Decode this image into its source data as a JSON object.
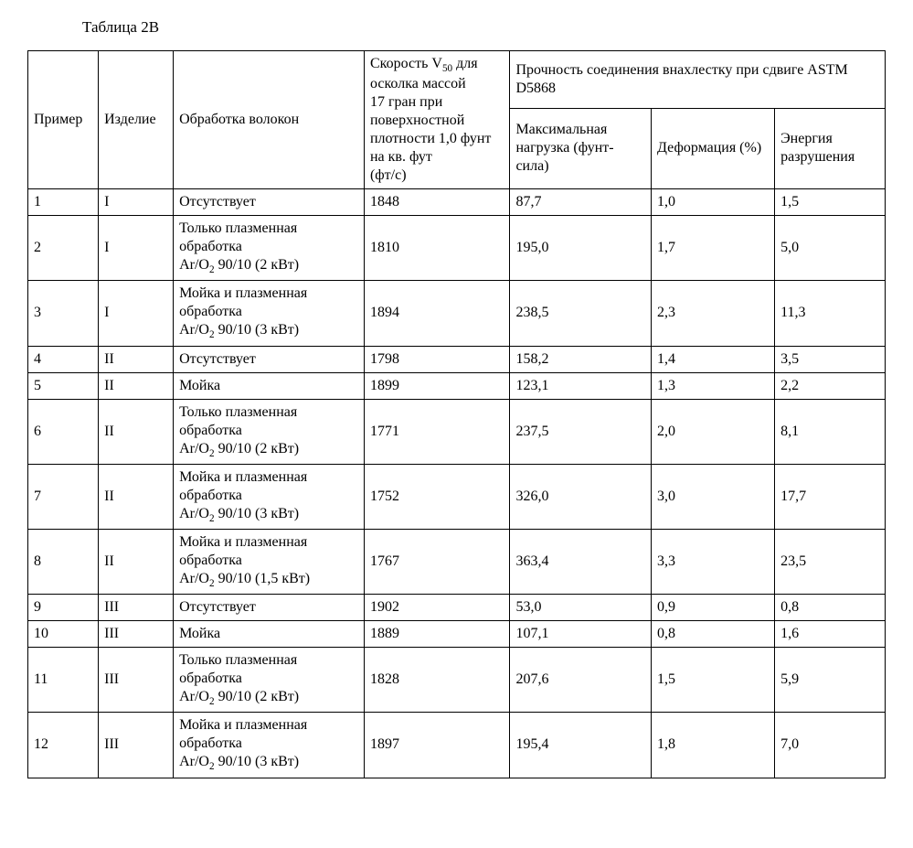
{
  "title": "Таблица 2В",
  "headers": {
    "example": "Пример",
    "product": "Изделие",
    "treatment": "Обработка волокон",
    "velocity_line1": "Скорость V",
    "velocity_sub50": "50",
    "velocity_line2": " для осколка массой",
    "velocity_line3": "17 гран при поверхностной плотности 1,0 фунт на кв. фут",
    "velocity_line4": "(фт/с)",
    "strength_group": "Прочность соединения внахлестку при сдвиге ASTM D5868",
    "max_load": "Максимальная нагрузка (фунт-сила)",
    "deformation": "Деформация (%)",
    "fracture_energy": "Энергия разрушения"
  },
  "treatments": {
    "none": "Отсутствует",
    "wash": "Мойка",
    "plasma2kw_l1": "Только плазменная обработка",
    "plasma2kw_l2": "Ar/O",
    "plasma2kw_l2_sub": "2",
    "plasma2kw_l2_rest": " 90/10 (2 кВт)",
    "washplasma3kw_l1": "Мойка и плазменная обработка",
    "washplasma3kw_l2": "Ar/O",
    "washplasma3kw_l2_sub": "2",
    "washplasma3kw_l2_rest": " 90/10 (3 кВт)",
    "washplasma15kw_l1": "Мойка и плазменная обработка",
    "washplasma15kw_l2": "Ar/O",
    "washplasma15kw_l2_sub": "2",
    "washplasma15kw_l2_rest": " 90/10 (1,5 кВт)"
  },
  "rows": [
    {
      "n": "1",
      "prod": "I",
      "treat": "none",
      "v": "1848",
      "load": "87,7",
      "def": "1,0",
      "e": "1,5"
    },
    {
      "n": "2",
      "prod": "I",
      "treat": "plasma2kw",
      "v": "1810",
      "load": "195,0",
      "def": "1,7",
      "e": "5,0"
    },
    {
      "n": "3",
      "prod": "I",
      "treat": "washplasma3kw",
      "v": "1894",
      "load": "238,5",
      "def": "2,3",
      "e": "11,3"
    },
    {
      "n": "4",
      "prod": "II",
      "treat": "none",
      "v": "1798",
      "load": "158,2",
      "def": "1,4",
      "e": "3,5"
    },
    {
      "n": "5",
      "prod": "II",
      "treat": "wash",
      "v": "1899",
      "load": "123,1",
      "def": "1,3",
      "e": "2,2"
    },
    {
      "n": "6",
      "prod": "II",
      "treat": "plasma2kw",
      "v": "1771",
      "load": "237,5",
      "def": "2,0",
      "e": "8,1"
    },
    {
      "n": "7",
      "prod": "II",
      "treat": "washplasma3kw",
      "v": "1752",
      "load": "326,0",
      "def": "3,0",
      "e": "17,7"
    },
    {
      "n": "8",
      "prod": "II",
      "treat": "washplasma15kw",
      "v": "1767",
      "load": "363,4",
      "def": "3,3",
      "e": "23,5"
    },
    {
      "n": "9",
      "prod": "III",
      "treat": "none",
      "v": "1902",
      "load": "53,0",
      "def": "0,9",
      "e": "0,8"
    },
    {
      "n": "10",
      "prod": "III",
      "treat": "wash",
      "v": "1889",
      "load": "107,1",
      "def": "0,8",
      "e": "1,6"
    },
    {
      "n": "11",
      "prod": "III",
      "treat": "plasma2kw",
      "v": "1828",
      "load": "207,6",
      "def": "1,5",
      "e": "5,9"
    },
    {
      "n": "12",
      "prod": "III",
      "treat": "washplasma3kw",
      "v": "1897",
      "load": "195,4",
      "def": "1,8",
      "e": "7,0"
    }
  ]
}
